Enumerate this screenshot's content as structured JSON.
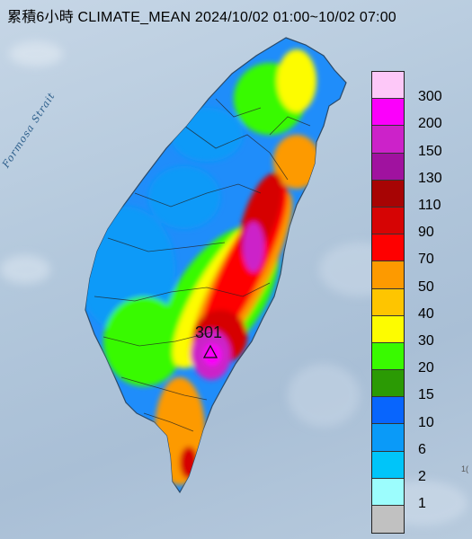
{
  "title": "累積6小時 CLIMATE_MEAN 2024/10/02 01:00~10/02 07:00",
  "sea_label": "Formosa Strait",
  "peak_value_label": "301",
  "peak_marker": "triangle-icon",
  "edge_text": "1(",
  "legend": {
    "unit_levels": [
      "300",
      "200",
      "150",
      "130",
      "110",
      "90",
      "70",
      "50",
      "40",
      "30",
      "20",
      "15",
      "10",
      "6",
      "2",
      "1"
    ],
    "colors": [
      "#fdc8f8",
      "#fb00fb",
      "#cc22c9",
      "#a0129f",
      "#a70404",
      "#d60404",
      "#fe0000",
      "#fd9a00",
      "#fec500",
      "#fdfc00",
      "#39fa00",
      "#2b9a04",
      "#0865fd",
      "#0a9af8",
      "#00c5f9",
      "#9cfdfd",
      "#c1c1c1"
    ]
  }
}
